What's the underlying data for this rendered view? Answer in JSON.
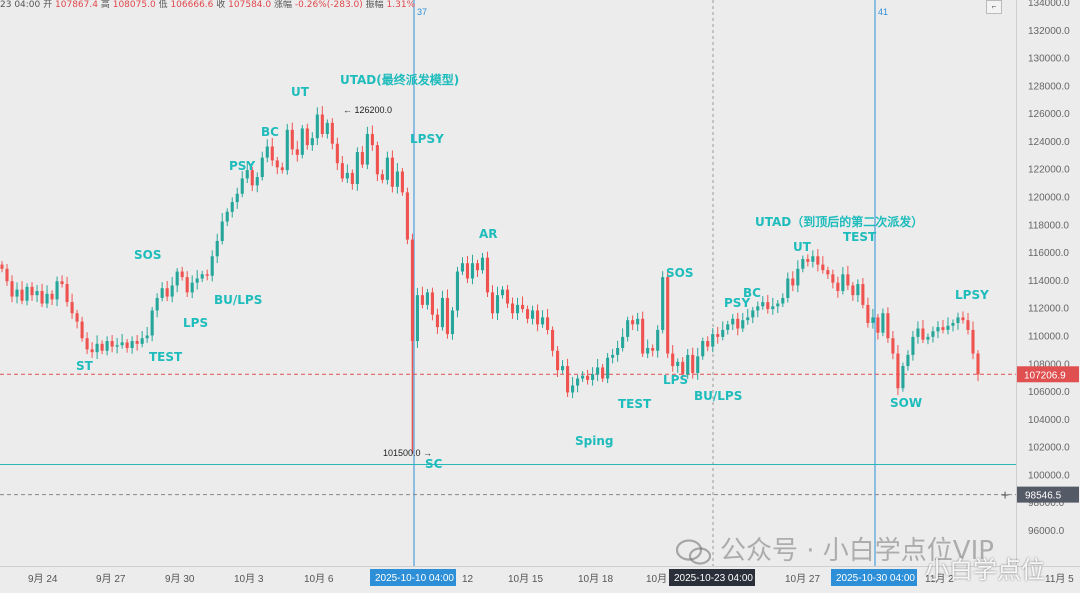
{
  "header": {
    "time": "23 04:00",
    "open_label": "开",
    "open": "107867.4",
    "high_label": "高",
    "high": "108075.0",
    "low_label": "低",
    "low": "106666.6",
    "close_label": "收",
    "close": "107584.0",
    "change_label": "涨幅",
    "change": "-0.26%(-283.0)",
    "amp_label": "振幅",
    "amp": "1.31%"
  },
  "watermark": {
    "text": "公众号 · 小白学点位VIP",
    "corner": "小白学点位"
  },
  "colors": {
    "up": "#26a69a",
    "down": "#ef5350",
    "label": "#1fbcbc",
    "vline": "#2d8fd8",
    "hline": "#28b8b8",
    "price_dash": "#e05050",
    "price_tag": "#e05050",
    "level_tag": "#555b66"
  },
  "chart_data": {
    "type": "candlestick",
    "ylim": [
      94500,
      134500
    ],
    "y_ticks": [
      "96000.0",
      "98000.0",
      "100000.0",
      "102000.0",
      "104000.0",
      "106000.0",
      "108000.0",
      "110000.0",
      "112000.0",
      "114000.0",
      "116000.0",
      "118000.0",
      "120000.0",
      "122000.0",
      "124000.0",
      "126000.0",
      "128000.0",
      "130000.0",
      "132000.0",
      "134000.0"
    ],
    "x_ticks": [
      "9月 24",
      "9月 27",
      "9月 30",
      "10月 3",
      "10月 6",
      "12",
      "10月 15",
      "10月 18",
      "10月",
      "10月 27",
      "11月 2",
      "11月 5"
    ],
    "highlight_dates": [
      "2025-10-10 04:00",
      "2025-10-23 04:00",
      "2025-10-30 04:00"
    ],
    "current_price": "107206.9",
    "level_price": "98546.5",
    "high_marker": "126200.0",
    "low_marker": "101500.0",
    "vline_labels": [
      "37",
      "41"
    ],
    "candles_close": [
      114800,
      113900,
      112800,
      113300,
      112500,
      113500,
      112900,
      113200,
      112300,
      113000,
      112600,
      113900,
      113700,
      112400,
      111600,
      111000,
      109800,
      109000,
      108800,
      109400,
      108900,
      109600,
      109200,
      109300,
      109500,
      109100,
      109600,
      109400,
      109800,
      110000,
      111800,
      112700,
      113400,
      112800,
      113600,
      114600,
      114200,
      113100,
      113800,
      114100,
      114400,
      114300,
      115700,
      116800,
      118200,
      118900,
      119600,
      120200,
      121300,
      121900,
      120800,
      121400,
      122800,
      123600,
      122600,
      122100,
      121900,
      124800,
      123400,
      123000,
      124900,
      123700,
      124200,
      125900,
      124500,
      125300,
      123800,
      122400,
      121300,
      121700,
      120900,
      123200,
      122300,
      124500,
      123700,
      121600,
      121200,
      122800,
      120700,
      121800,
      120300,
      116900,
      109600,
      112900,
      112200,
      113100,
      111500,
      110600,
      112700,
      110100,
      111800,
      114600,
      115200,
      114100,
      115200,
      114700,
      115600,
      113100,
      111600,
      112900,
      113300,
      112300,
      111600,
      112200,
      111900,
      111200,
      111800,
      110800,
      111300,
      110400,
      108900,
      107500,
      107800,
      105900,
      106400,
      106900,
      107100,
      106800,
      107200,
      107700,
      106900,
      108400,
      108600,
      109100,
      109900,
      111100,
      110800,
      111200,
      108700,
      109100,
      108900,
      110400,
      114200,
      108700,
      107800,
      108100,
      107200,
      108600,
      107300,
      108500,
      109600,
      109200,
      110100,
      109900,
      110400,
      110800,
      111200,
      110500,
      111100,
      111300,
      111800,
      112100,
      112400,
      111900,
      112100,
      112300,
      112700,
      114100,
      113600,
      114800,
      115500,
      115300,
      115700,
      115100,
      114700,
      114400,
      113800,
      113200,
      114400,
      113600,
      112900,
      113700,
      112200,
      110900,
      111300,
      110200,
      111600,
      109800,
      108700,
      106200,
      107800,
      108600,
      109900,
      110500,
      109700,
      109900,
      110300,
      110600,
      110400,
      110700,
      110900,
      111300,
      111100,
      110400,
      108700,
      107200
    ]
  },
  "labels": [
    "ST",
    "TEST",
    "LPS",
    "SOS",
    "BU/LPS",
    "PSY",
    "BC",
    "UT",
    "UTAD(最终派发模型)",
    "LPSY",
    "AR",
    "SC",
    "Sping",
    "TEST",
    "SOS",
    "LPS",
    "BU/LPS",
    "PSY",
    "BC",
    "UT",
    "UTAD（到顶后的第二次派发）",
    "TEST",
    "SOW",
    "LPSY"
  ]
}
